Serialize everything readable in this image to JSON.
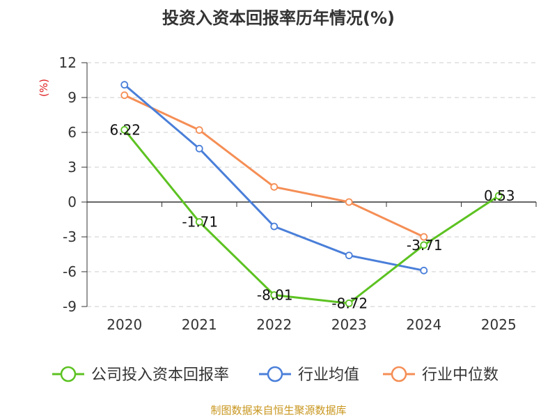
{
  "source_note": "制图数据来自恒生聚源数据库",
  "chart_data": {
    "type": "line",
    "title": "投资入资本回报率历年情况(%)",
    "ylabel": "(%)",
    "xlabel": "",
    "categories": [
      "2020",
      "2021",
      "2022",
      "2023",
      "2024",
      "2025"
    ],
    "ylim": [
      -9,
      12
    ],
    "yticks": [
      12,
      9,
      6,
      3,
      0,
      -3,
      -6,
      -9
    ],
    "grid": true,
    "legend_position": "bottom",
    "series": [
      {
        "name": "公司投入资本回报率",
        "color": "#5cc221",
        "values": [
          6.22,
          -1.71,
          -8.01,
          -8.72,
          -3.71,
          0.53
        ],
        "labels": [
          "6.22",
          "-1.71",
          "-8.01",
          "-8.72",
          "-3.71",
          "0.53"
        ]
      },
      {
        "name": "行业均值",
        "color": "#4a7fd9",
        "values": [
          10.1,
          4.6,
          -2.1,
          -4.6,
          -5.9,
          null
        ]
      },
      {
        "name": "行业中位数",
        "color": "#f58e55",
        "values": [
          9.2,
          6.2,
          1.3,
          0.0,
          -3.0,
          null
        ]
      }
    ],
    "ylabel_color": "#e02020",
    "source_color": "#c8961e"
  }
}
